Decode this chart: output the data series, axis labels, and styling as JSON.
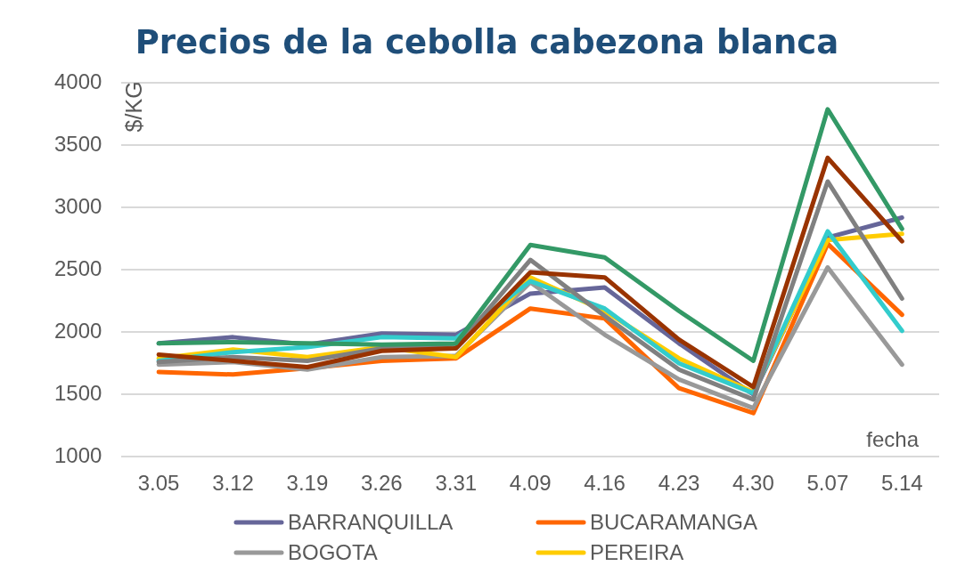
{
  "chart_data": {
    "type": "line",
    "title": "Precios de la cebolla cabezona blanca",
    "xlabel": "fecha",
    "ylabel": "$/KG",
    "categories": [
      "3.05",
      "3.12",
      "3.19",
      "3.26",
      "3.31",
      "4.09",
      "4.16",
      "4.23",
      "4.30",
      "5.07",
      "5.14"
    ],
    "series": [
      {
        "name": "BARRANQUILLA",
        "color": "#666699",
        "values": [
          1910,
          1960,
          1900,
          1990,
          1980,
          2310,
          2360,
          1910,
          1500,
          2760,
          2920
        ]
      },
      {
        "name": "BUCARAMANGA",
        "color": "#ff6600",
        "values": [
          1680,
          1660,
          1710,
          1770,
          1790,
          2190,
          2110,
          1550,
          1350,
          2710,
          2140
        ]
      },
      {
        "name": "BOGOTA",
        "color": "#999999",
        "values": [
          1740,
          1760,
          1700,
          1800,
          1810,
          2400,
          1980,
          1620,
          1390,
          2520,
          1740
        ]
      },
      {
        "name": "PEREIRA",
        "color": "#ffcc00",
        "values": [
          1790,
          1860,
          1800,
          1880,
          1800,
          2440,
          2170,
          1790,
          1520,
          2740,
          2790
        ]
      },
      {
        "color": "#33cccc",
        "values": [
          1770,
          1840,
          1880,
          1960,
          1950,
          2410,
          2190,
          1750,
          1510,
          2810,
          2010
        ]
      },
      {
        "color": "#808080",
        "values": [
          1760,
          1800,
          1770,
          1870,
          1880,
          2580,
          2130,
          1700,
          1460,
          3210,
          2270
        ]
      },
      {
        "color": "#993300",
        "values": [
          1820,
          1770,
          1720,
          1850,
          1870,
          2480,
          2440,
          1940,
          1560,
          3400,
          2730
        ]
      },
      {
        "color": "#339966",
        "values": [
          1910,
          1920,
          1910,
          1900,
          1910,
          2700,
          2600,
          2170,
          1770,
          3790,
          2830
        ]
      }
    ],
    "ylim": [
      1000,
      4000
    ],
    "yticks": [
      1000,
      1500,
      2000,
      2500,
      3000,
      3500,
      4000
    ],
    "grid": "y",
    "legend": "bottom",
    "marker": "none"
  }
}
